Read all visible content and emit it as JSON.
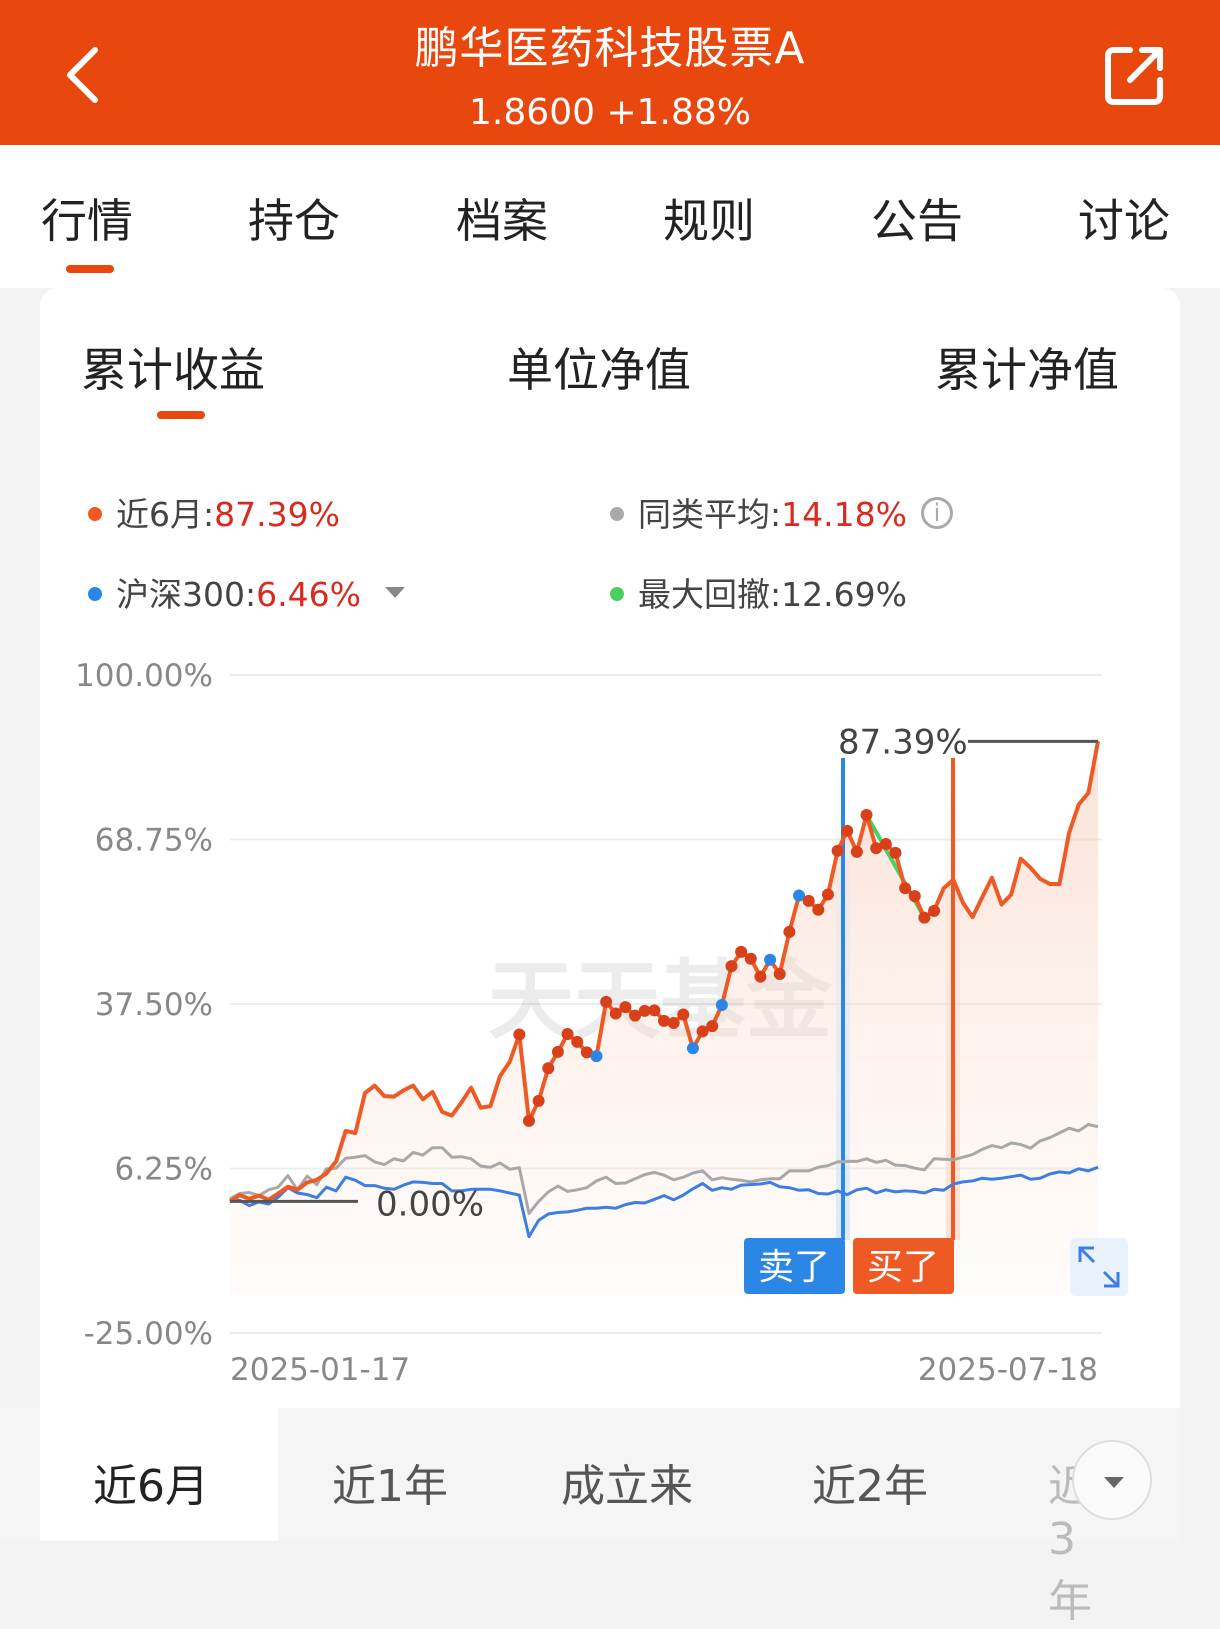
{
  "header": {
    "title": "鹏华医药科技股票A",
    "subtitle": "1.8600 +1.88%",
    "bg_color": "#e8470d"
  },
  "tabs": [
    "行情",
    "持仓",
    "档案",
    "规则",
    "公告",
    "讨论"
  ],
  "subtabs": [
    "累计收益",
    "单位净值",
    "累计净值"
  ],
  "legend": {
    "fund": {
      "label": "近6月:",
      "value": "87.39%"
    },
    "peer": {
      "label": "同类平均:",
      "value": "14.18%"
    },
    "index": {
      "label": "沪深300:",
      "value": "6.46%"
    },
    "drawdown": {
      "label": "最大回撤:",
      "value": "12.69%"
    }
  },
  "chart_data": {
    "type": "line",
    "y_tick_labels": [
      "100.00%",
      "68.75%",
      "37.50%",
      "6.25%",
      "-25.00%"
    ],
    "y_ticks": [
      100,
      68.75,
      37.5,
      6.25,
      -25
    ],
    "ylim": [
      -25,
      100
    ],
    "x_labels": [
      "2025-01-17",
      "2025-07-18"
    ],
    "annotations": {
      "max_label": "87.39%",
      "start_label": "0.00%",
      "sell_label": "卖了",
      "buy_label": "买了"
    },
    "watermark": "天天基金",
    "series": [
      {
        "name": "近6月",
        "color": "#ef5a24",
        "values": [
          0,
          1.2,
          0.5,
          1.1,
          0.3,
          1.5,
          2.8,
          2.2,
          3.6,
          4.1,
          5.3,
          7.6,
          13.4,
          13,
          20.6,
          22,
          20,
          19.9,
          21.1,
          22,
          19.4,
          20.8,
          17,
          16.3,
          18.8,
          21.6,
          17.8,
          18.1,
          23.8,
          26.5,
          31.7,
          15.3,
          19.1,
          25.3,
          28.4,
          31.8,
          30.3,
          28.3,
          27.6,
          37.9,
          35.7,
          36.9,
          35.3,
          36.2,
          36.3,
          34.3,
          33.9,
          35.5,
          29.1,
          32.3,
          33.3,
          37.3,
          44.7,
          47.4,
          46.1,
          42.7,
          45.9,
          43.2,
          51.2,
          58.1,
          57.1,
          55.4,
          58.3,
          66.6,
          70.4,
          66.4,
          73.4,
          67.1,
          67.9,
          66.2,
          59.5,
          58,
          53.9,
          55.2,
          59.5,
          61.1,
          56.7,
          54,
          57.8,
          61.5,
          56.4,
          58.3,
          65.1,
          63.4,
          61.3,
          60.3,
          60.3,
          70,
          75.4,
          77.6,
          87.4
        ]
      },
      {
        "name": "同类平均",
        "color": "#aaaaaa",
        "values": [
          0.5,
          1.5,
          1.7,
          1.1,
          2.2,
          2.7,
          4.9,
          2.2,
          4.8,
          3.2,
          6.2,
          6.3,
          8.2,
          8.4,
          8.7,
          7.5,
          7,
          8.1,
          7.7,
          9.3,
          8.8,
          10.2,
          10.2,
          8.4,
          8.5,
          8.1,
          6.7,
          6.5,
          7.3,
          6.1,
          6.4,
          -2.3,
          0,
          1.8,
          2.9,
          1.9,
          2.2,
          2.6,
          3.9,
          4.6,
          3.4,
          3.5,
          4.3,
          5.1,
          5.5,
          5,
          4.1,
          4.6,
          5.4,
          5.8,
          4.1,
          4.5,
          4.2,
          4,
          3.7,
          4.1,
          4.3,
          4.3,
          5.8,
          5.8,
          5.8,
          6.5,
          6.8,
          7.5,
          7.6,
          7.6,
          8.1,
          7.4,
          7.8,
          6.9,
          6.8,
          6.3,
          6,
          8.1,
          8,
          7.9,
          8.4,
          8.9,
          9.9,
          10.6,
          10.2,
          11.1,
          10.8,
          10.1,
          11.5,
          12.1,
          13,
          13.9,
          13.4,
          14.6,
          14.2
        ]
      },
      {
        "name": "沪深300",
        "color": "#3c7fe0",
        "values": [
          0.2,
          0.2,
          -0.8,
          -0.1,
          -0.5,
          0.8,
          2.6,
          1.6,
          1.3,
          0.7,
          2.7,
          2,
          4.6,
          4,
          3,
          3,
          2.5,
          2.3,
          3.1,
          3.7,
          3.6,
          3.4,
          3.4,
          2,
          2,
          2.3,
          2.3,
          2.3,
          2,
          1.6,
          1.2,
          -6.7,
          -3.6,
          -2.4,
          -2.1,
          -2,
          -1.7,
          -1.3,
          -1.3,
          -1.1,
          -1.3,
          -0.6,
          -0.2,
          -0.3,
          0.4,
          1.1,
          0.3,
          1.2,
          2.4,
          3.4,
          2.1,
          2.6,
          2.3,
          3.1,
          3.2,
          3.3,
          3.6,
          2.8,
          2.6,
          2.1,
          2.2,
          1.5,
          1.4,
          2,
          1.3,
          2.2,
          2.5,
          1.6,
          2.2,
          1.8,
          2,
          1.9,
          1.6,
          2.3,
          2.1,
          3.3,
          3.7,
          3.9,
          4.4,
          4.2,
          4.4,
          4.7,
          5,
          4.2,
          4.4,
          5.2,
          5.6,
          5.4,
          6.2,
          5.8,
          6.5
        ]
      }
    ]
  },
  "periods": [
    "近6月",
    "近1年",
    "成立来",
    "近2年",
    "近3年"
  ]
}
